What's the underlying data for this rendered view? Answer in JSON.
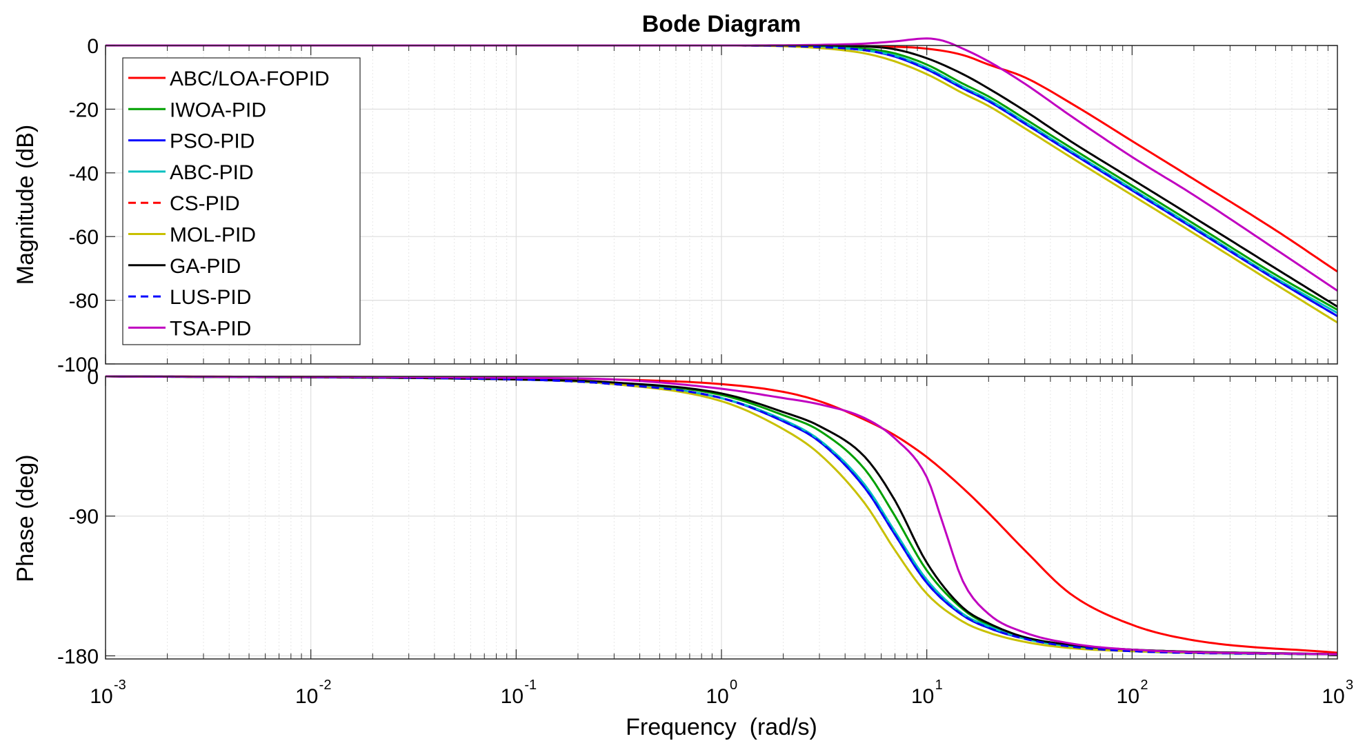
{
  "chart_data": [
    {
      "type": "line",
      "title": "Bode Diagram",
      "ylabel": "Magnitude (dB)",
      "xlabel": "",
      "xscale": "log",
      "xlim": [
        0.001,
        1000
      ],
      "ylim": [
        -100,
        0
      ],
      "yticks": [
        0,
        -20,
        -40,
        -60,
        -80,
        -100
      ],
      "grid": true,
      "legend_position": "top-left",
      "series": [
        {
          "name": "ABC/LOA-FOPID",
          "color": "#ff0000",
          "dash": "solid",
          "x": [
            0.001,
            0.1,
            1,
            3,
            6,
            10,
            15,
            20,
            30,
            50,
            100,
            200,
            500,
            1000
          ],
          "values": [
            0,
            0,
            0,
            0,
            -0.3,
            -1,
            -3,
            -6,
            -10,
            -18,
            -30,
            -42,
            -58,
            -71
          ]
        },
        {
          "name": "IWOA-PID",
          "color": "#00a000",
          "dash": "solid",
          "x": [
            0.001,
            0.1,
            1,
            3,
            5,
            7,
            10,
            15,
            20,
            30,
            50,
            100,
            200,
            500,
            1000
          ],
          "values": [
            0,
            0,
            0,
            -0.3,
            -1,
            -2.5,
            -6,
            -12,
            -16,
            -23,
            -32,
            -44,
            -56,
            -72,
            -83
          ]
        },
        {
          "name": "PSO-PID",
          "color": "#0000ff",
          "dash": "solid",
          "x": [
            0.001,
            0.1,
            1,
            3,
            5,
            7,
            10,
            15,
            20,
            30,
            50,
            100,
            200,
            500,
            1000
          ],
          "values": [
            0,
            0,
            0,
            -0.5,
            -1.5,
            -3.5,
            -7.5,
            -13.5,
            -17.5,
            -24.5,
            -33.5,
            -45.5,
            -57.5,
            -73.5,
            -85
          ]
        },
        {
          "name": "ABC-PID",
          "color": "#00c0c0",
          "dash": "solid",
          "x": [
            0.001,
            0.1,
            1,
            3,
            5,
            7,
            10,
            15,
            20,
            30,
            50,
            100,
            200,
            500,
            1000
          ],
          "values": [
            0,
            0,
            0,
            -0.5,
            -1.5,
            -3.2,
            -7,
            -13,
            -17,
            -24,
            -33,
            -45,
            -57,
            -73,
            -84
          ]
        },
        {
          "name": "CS-PID",
          "color": "#ff0000",
          "dash": "dashed",
          "x": [
            0.001,
            0.1,
            1,
            3,
            5,
            7,
            10,
            15,
            20,
            30,
            50,
            100,
            200,
            500,
            1000
          ],
          "values": [
            0,
            0,
            0,
            -0.5,
            -1.5,
            -3.5,
            -7.5,
            -13.5,
            -17.5,
            -24.5,
            -33.5,
            -45.5,
            -57.5,
            -73.5,
            -85
          ]
        },
        {
          "name": "MOL-PID",
          "color": "#c8c000",
          "dash": "solid",
          "x": [
            0.001,
            0.1,
            1,
            3,
            5,
            7,
            10,
            15,
            20,
            30,
            50,
            100,
            200,
            500,
            1000
          ],
          "values": [
            0,
            0,
            0,
            -0.8,
            -2.5,
            -5,
            -9,
            -15,
            -19,
            -26,
            -35,
            -47,
            -59,
            -75,
            -87
          ]
        },
        {
          "name": "GA-PID",
          "color": "#000000",
          "dash": "solid",
          "x": [
            0.001,
            0.1,
            1,
            3,
            5,
            7,
            10,
            15,
            20,
            30,
            50,
            100,
            200,
            500,
            1000
          ],
          "values": [
            0,
            0,
            0,
            0,
            -0.3,
            -1.2,
            -4,
            -9,
            -13.5,
            -20.5,
            -30,
            -42,
            -54,
            -70,
            -82
          ]
        },
        {
          "name": "LUS-PID",
          "color": "#0000ff",
          "dash": "dashed",
          "x": [
            0.001,
            0.1,
            1,
            3,
            5,
            7,
            10,
            15,
            20,
            30,
            50,
            100,
            200,
            500,
            1000
          ],
          "values": [
            0,
            0,
            0,
            -0.5,
            -1.5,
            -3.5,
            -7.5,
            -13.5,
            -17.5,
            -24.5,
            -33.5,
            -45.5,
            -57.5,
            -73.5,
            -85
          ]
        },
        {
          "name": "TSA-PID",
          "color": "#c000c0",
          "dash": "solid",
          "x": [
            0.001,
            0.1,
            1,
            3,
            5,
            7,
            10,
            12,
            15,
            20,
            30,
            50,
            100,
            200,
            500,
            1000
          ],
          "values": [
            0,
            0,
            0,
            0.2,
            0.6,
            1.3,
            2.2,
            1.5,
            -1,
            -5,
            -12,
            -22,
            -35,
            -47,
            -64,
            -77
          ]
        }
      ]
    },
    {
      "type": "line",
      "title": "",
      "ylabel": "Phase (deg)",
      "xlabel": "Frequency  (rad/s)",
      "xscale": "log",
      "xlim": [
        0.001,
        1000
      ],
      "xticks": [
        "10",
        "10",
        "10",
        "10",
        "10",
        "10",
        "10"
      ],
      "xtick_exponents": [
        "-3",
        "-2",
        "-1",
        "0",
        "1",
        "2",
        "3"
      ],
      "ylim": [
        -182,
        0
      ],
      "yticks": [
        0,
        -90,
        -180
      ],
      "grid": true,
      "series": [
        {
          "name": "ABC/LOA-FOPID",
          "x": [
            0.001,
            0.1,
            0.3,
            1,
            2,
            3,
            5,
            7,
            10,
            15,
            20,
            30,
            50,
            100,
            200,
            1000
          ],
          "values": [
            0,
            -1,
            -2,
            -5,
            -10,
            -16,
            -28,
            -38,
            -52,
            -72,
            -88,
            -112,
            -140,
            -160,
            -170,
            -178
          ]
        },
        {
          "name": "IWOA-PID",
          "x": [
            0.001,
            0.1,
            0.3,
            1,
            2,
            3,
            5,
            7,
            10,
            15,
            20,
            30,
            50,
            100,
            1000
          ],
          "values": [
            0,
            -2,
            -4,
            -12,
            -25,
            -35,
            -60,
            -90,
            -125,
            -150,
            -160,
            -168,
            -173,
            -176,
            -179
          ]
        },
        {
          "name": "PSO-PID",
          "x": [
            0.001,
            0.1,
            0.3,
            1,
            2,
            3,
            5,
            7,
            10,
            15,
            20,
            30,
            50,
            100,
            1000
          ],
          "values": [
            0,
            -2,
            -5,
            -14,
            -29,
            -42,
            -72,
            -102,
            -133,
            -154,
            -162,
            -169,
            -174,
            -177,
            -179
          ]
        },
        {
          "name": "ABC-PID",
          "x": [
            0.001,
            0.1,
            0.3,
            1,
            2,
            3,
            5,
            7,
            10,
            15,
            20,
            30,
            50,
            100,
            1000
          ],
          "values": [
            0,
            -2,
            -5,
            -14,
            -28,
            -41,
            -70,
            -100,
            -131,
            -153,
            -161,
            -169,
            -174,
            -177,
            -179
          ]
        },
        {
          "name": "CS-PID",
          "x": [
            0.001,
            0.1,
            0.3,
            1,
            2,
            3,
            5,
            7,
            10,
            15,
            20,
            30,
            50,
            100,
            1000
          ],
          "values": [
            0,
            -2,
            -5,
            -14,
            -29,
            -42,
            -72,
            -102,
            -133,
            -154,
            -162,
            -169,
            -174,
            -177,
            -179
          ]
        },
        {
          "name": "MOL-PID",
          "x": [
            0.001,
            0.1,
            0.3,
            1,
            2,
            3,
            5,
            7,
            10,
            15,
            20,
            30,
            50,
            100,
            1000
          ],
          "values": [
            0,
            -2,
            -5,
            -16,
            -34,
            -50,
            -82,
            -112,
            -140,
            -158,
            -165,
            -171,
            -175,
            -177,
            -179
          ]
        },
        {
          "name": "GA-PID",
          "x": [
            0.001,
            0.1,
            0.3,
            1,
            2,
            3,
            5,
            7,
            10,
            15,
            20,
            30,
            50,
            100,
            1000
          ],
          "values": [
            0,
            -2,
            -4,
            -11,
            -23,
            -32,
            -52,
            -80,
            -120,
            -149,
            -159,
            -168,
            -173,
            -176,
            -179
          ]
        },
        {
          "name": "LUS-PID",
          "x": [
            0.001,
            0.1,
            0.3,
            1,
            2,
            3,
            5,
            7,
            10,
            15,
            20,
            30,
            50,
            100,
            1000
          ],
          "values": [
            0,
            -2,
            -5,
            -14,
            -29,
            -42,
            -72,
            -102,
            -133,
            -154,
            -162,
            -169,
            -174,
            -177,
            -179
          ]
        },
        {
          "name": "TSA-PID",
          "x": [
            0.001,
            0.1,
            0.3,
            1,
            2,
            3,
            5,
            7,
            10,
            12,
            15,
            20,
            30,
            50,
            100,
            1000
          ],
          "values": [
            0,
            -1,
            -2,
            -8,
            -14,
            -18,
            -27,
            -40,
            -65,
            -95,
            -132,
            -153,
            -165,
            -172,
            -176,
            -179
          ]
        }
      ]
    }
  ]
}
